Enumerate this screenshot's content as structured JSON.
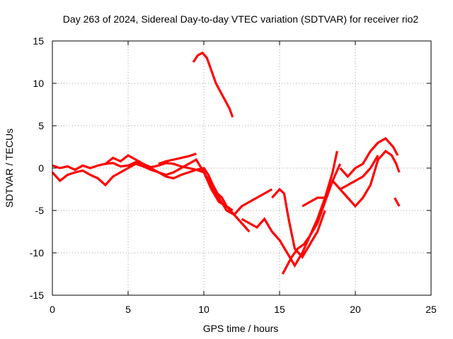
{
  "chart_data": {
    "type": "line",
    "title": "Day 263 of 2024, Sidereal Day-to-day VTEC variation (SDTVAR) for receiver rio2",
    "xlabel": "GPS time / hours",
    "ylabel": "SDTVAR / TECUs",
    "xlim": [
      0,
      25
    ],
    "ylim": [
      -15,
      15
    ],
    "xticks": [
      0,
      5,
      10,
      15,
      20,
      25
    ],
    "yticks": [
      -15,
      -10,
      -5,
      0,
      5,
      10,
      15
    ],
    "grid": true,
    "legend": "none",
    "series_color": "#ff0000",
    "series": [
      {
        "name": "satellite track 1",
        "x": [
          0.0,
          0.5,
          1.0,
          1.5,
          2.0,
          2.5,
          3.0,
          3.5,
          4.0,
          4.5,
          5.0,
          5.5,
          6.0,
          6.5,
          7.0,
          7.5,
          8.0,
          8.5,
          9.0,
          9.5,
          10.0,
          10.3,
          10.6,
          10.9,
          11.2,
          11.5,
          11.9
        ],
        "y": [
          0.3,
          0.0,
          0.2,
          -0.2,
          0.3,
          0.0,
          0.3,
          0.5,
          0.6,
          0.2,
          0.3,
          0.7,
          0.5,
          0.1,
          0.3,
          0.6,
          0.5,
          0.2,
          0.0,
          -0.2,
          0.0,
          -0.8,
          -2.0,
          -3.0,
          -3.5,
          -4.5,
          -5.0
        ]
      },
      {
        "name": "satellite track 2",
        "x": [
          0.0,
          0.5,
          1.0,
          1.5,
          2.0,
          2.5,
          3.0,
          3.5,
          4.0,
          4.5,
          5.0,
          5.5,
          6.0,
          6.5,
          7.0,
          7.5,
          8.0,
          8.5,
          9.0,
          9.5,
          10.0,
          10.5,
          11.0,
          11.5,
          12.0,
          12.5,
          13.0
        ],
        "y": [
          -0.5,
          -1.5,
          -0.8,
          -0.5,
          -0.3,
          -0.8,
          -1.2,
          -2.0,
          -1.0,
          -0.5,
          0.0,
          0.5,
          0.2,
          -0.2,
          -0.5,
          -1.0,
          -1.2,
          -0.8,
          -0.5,
          -0.2,
          -0.5,
          -2.5,
          -4.0,
          -4.5,
          -5.5,
          -6.5,
          -7.5
        ]
      },
      {
        "name": "satellite track 3",
        "x": [
          3.5,
          4.0,
          4.5,
          5.0,
          5.5,
          6.0,
          6.5,
          7.0,
          7.5,
          8.0,
          8.5,
          9.0,
          9.5,
          10.0,
          10.5,
          11.0,
          11.5,
          12.0,
          12.5,
          13.0,
          13.5,
          14.0,
          14.5
        ],
        "y": [
          0.5,
          1.2,
          0.8,
          1.5,
          1.0,
          0.5,
          0.0,
          -0.5,
          -0.8,
          -0.5,
          0.0,
          0.5,
          1.0,
          -0.5,
          -2.0,
          -3.5,
          -5.0,
          -5.5,
          -4.5,
          -4.0,
          -3.5,
          -3.0,
          -2.5
        ]
      },
      {
        "name": "satellite track 4",
        "x": [
          7.0,
          7.5,
          8.0,
          8.5,
          9.0,
          9.5
        ],
        "y": [
          0.5,
          0.8,
          1.0,
          1.2,
          1.4,
          1.7
        ]
      },
      {
        "name": "satellite track 5",
        "x": [
          9.3,
          9.6,
          9.9,
          10.2,
          10.5,
          10.8,
          11.1,
          11.4,
          11.7,
          11.9
        ],
        "y": [
          12.5,
          13.3,
          13.6,
          13.0,
          11.5,
          10.0,
          9.0,
          8.0,
          7.0,
          6.0
        ]
      },
      {
        "name": "satellite track 6",
        "x": [
          12.5,
          13.0,
          13.5,
          14.0,
          14.5,
          15.0,
          15.5,
          16.0,
          16.5,
          17.0,
          17.5,
          18.0,
          18.5,
          18.8
        ],
        "y": [
          -6.0,
          -6.5,
          -7.0,
          -6.0,
          -7.5,
          -8.5,
          -10.0,
          -11.5,
          -10.0,
          -8.0,
          -6.0,
          -3.5,
          -0.5,
          2.0
        ]
      },
      {
        "name": "satellite track 7",
        "x": [
          14.5,
          15.0,
          15.3,
          15.6,
          16.0,
          16.5,
          17.0,
          17.5,
          18.0
        ],
        "y": [
          -3.5,
          -2.5,
          -3.0,
          -6.0,
          -9.5,
          -10.5,
          -9.0,
          -7.5,
          -5.0
        ]
      },
      {
        "name": "satellite track 8",
        "x": [
          15.2,
          15.5,
          15.8,
          16.2,
          16.6,
          17.0,
          17.5,
          18.0,
          18.5,
          19.0
        ],
        "y": [
          -12.5,
          -11.5,
          -10.5,
          -9.5,
          -9.0,
          -8.0,
          -6.5,
          -4.0,
          -1.5,
          0.5
        ]
      },
      {
        "name": "satellite track 9",
        "x": [
          16.5,
          17.0,
          17.5,
          18.0
        ],
        "y": [
          -4.5,
          -4.0,
          -3.5,
          -3.5
        ]
      },
      {
        "name": "satellite track 10",
        "x": [
          18.5,
          19.0,
          19.5,
          20.0,
          20.5,
          21.0,
          21.5,
          22.0,
          22.4,
          22.7,
          22.9
        ],
        "y": [
          -1.5,
          -2.5,
          -3.5,
          -4.5,
          -3.5,
          -2.0,
          1.0,
          2.0,
          1.5,
          0.5,
          -0.5
        ]
      },
      {
        "name": "satellite track 11",
        "x": [
          19.0,
          19.5,
          20.0,
          20.5,
          21.0,
          21.5,
          22.0,
          22.5,
          22.8
        ],
        "y": [
          0.0,
          -1.0,
          0.0,
          0.5,
          2.0,
          3.0,
          3.5,
          2.5,
          1.5
        ]
      },
      {
        "name": "satellite track 12",
        "x": [
          19.0,
          19.5,
          20.0,
          20.5,
          21.0,
          21.5
        ],
        "y": [
          -2.5,
          -2.0,
          -1.5,
          -1.0,
          0.0,
          1.5
        ]
      },
      {
        "name": "satellite track 13",
        "x": [
          22.6,
          22.9
        ],
        "y": [
          -3.5,
          -4.5
        ]
      }
    ]
  }
}
